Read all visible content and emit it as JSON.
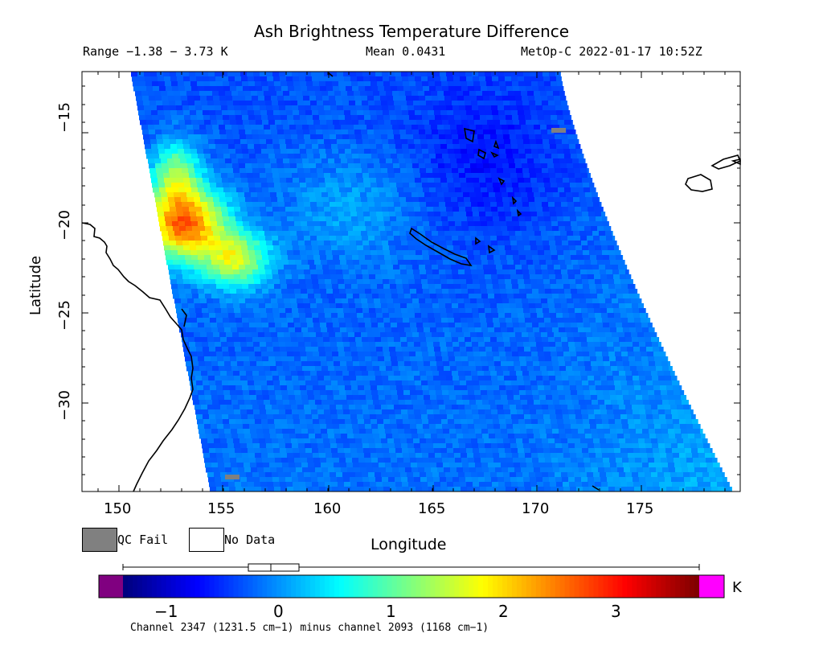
{
  "title": "Ash Brightness Temperature Difference",
  "header": {
    "range": "Range −1.38 − 3.73 K",
    "mean": "Mean 0.0431",
    "satellite_time": "MetOp-C 2022-01-17 10:52Z"
  },
  "axes": {
    "ylabel": "Latitude",
    "xlabel": "Longitude",
    "yticks": [
      "−15",
      "−20",
      "−25",
      "−30"
    ],
    "xticks": [
      "150",
      "155",
      "160",
      "165",
      "170",
      "175"
    ],
    "lon_range": [
      148.2,
      179.6
    ],
    "lat_range": [
      -34.9,
      -11.8
    ]
  },
  "legend": {
    "qc_fail": "QC Fail",
    "no_data": "No Data"
  },
  "colorbar": {
    "unit": "K",
    "ticks": [
      "−1",
      "0",
      "1",
      "2",
      "3"
    ],
    "range": [
      -1.38,
      3.73
    ],
    "below_color": "#800080",
    "above_color": "#ff00ff",
    "qc_fail_color": "#808080"
  },
  "footer": "Channel 2347 (1231.5 cm−1) minus channel 2093 (1168 cm−1)"
}
